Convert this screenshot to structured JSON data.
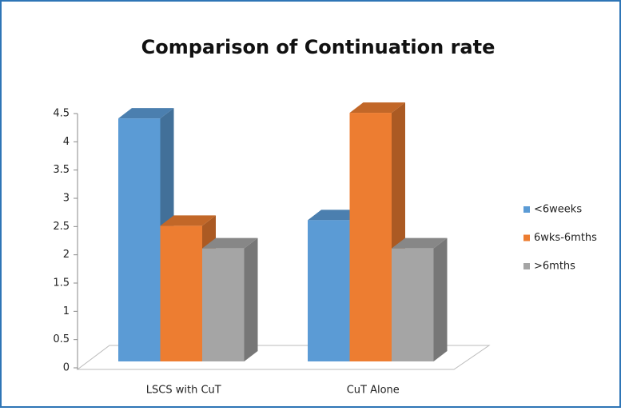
{
  "chart_data": {
    "type": "bar3d",
    "title": "Comparison of Continuation rate",
    "categories": [
      "LSCS with CuT",
      "CuT Alone"
    ],
    "series": [
      {
        "name": "<6weeks",
        "color": "#5b9bd5",
        "values": [
          4.3,
          2.5
        ]
      },
      {
        "name": "6wks-6mths",
        "color": "#ed7d31",
        "values": [
          2.4,
          4.4
        ]
      },
      {
        "name": ">6mths",
        "color": "#a5a5a5",
        "values": [
          2.0,
          2.0
        ]
      }
    ],
    "ylim": [
      0,
      4.5
    ],
    "yticks": [
      0,
      0.5,
      1,
      1.5,
      2,
      2.5,
      3,
      3.5,
      4,
      4.5
    ],
    "legend": "right"
  }
}
